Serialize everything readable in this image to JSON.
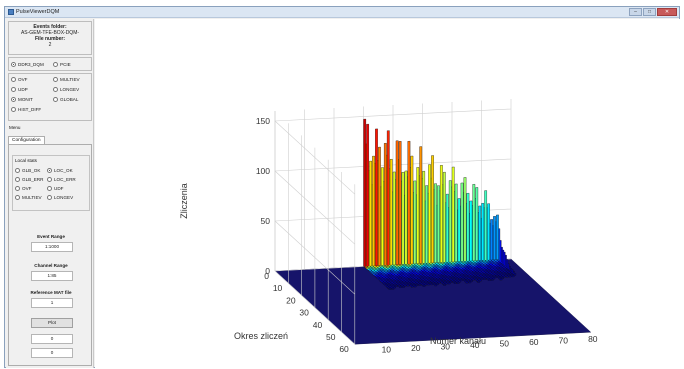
{
  "window": {
    "title": "PulseViewerDQM",
    "ctrl_minimize": "–",
    "ctrl_maximize": "□",
    "ctrl_close": "✕"
  },
  "sidebar": {
    "events_folder_label": "Events folder:",
    "events_folder_value": "AS-GEM-TFE-BOX-DQM-",
    "file_number_label": "File number:",
    "file_number_value": "2",
    "source_options": [
      {
        "label": "DDR3_DQM",
        "selected": true
      },
      {
        "label": "PCIE",
        "selected": false
      }
    ],
    "mode_options": [
      {
        "label": "OVF",
        "selected": false
      },
      {
        "label": "MULTIEV",
        "selected": false
      },
      {
        "label": "UDP",
        "selected": false
      },
      {
        "label": "LONGEV",
        "selected": false
      },
      {
        "label": "MONIT",
        "selected": true
      },
      {
        "label": "GLOBAL",
        "selected": false
      },
      {
        "label": "HIST_DIFF",
        "selected": false
      }
    ],
    "menu_label": "Menu",
    "tab_label": "Configuration",
    "local_stats_label": "Local stats",
    "local_stats": [
      {
        "label": "GLB_OK",
        "selected": false
      },
      {
        "label": "LOC_OK",
        "selected": true
      },
      {
        "label": "GLB_ERR",
        "selected": false
      },
      {
        "label": "LOC_ERR",
        "selected": false
      },
      {
        "label": "OVF",
        "selected": false
      },
      {
        "label": "UDF",
        "selected": false
      },
      {
        "label": "MULTIEV",
        "selected": false
      },
      {
        "label": "LONGEV",
        "selected": false
      }
    ],
    "event_range_label": "Event Range",
    "event_range_value": "1:1000",
    "channel_range_label": "Channel Range",
    "channel_range_value": "1:85",
    "reference_label": "Reference MAT file",
    "reference_value": "1",
    "plot_button": "Plot",
    "extra_field_1": "0",
    "extra_field_2": "0"
  },
  "chart_data": {
    "type": "bar3d",
    "zlabel": "Zliczenia",
    "xlabel": "Numer kanału",
    "ylabel": "Okres zliczeń",
    "x_ticks": [
      "10",
      "20",
      "30",
      "40",
      "50",
      "60",
      "70",
      "80"
    ],
    "y_ticks": [
      "0",
      "10",
      "20",
      "30",
      "40",
      "50",
      "60"
    ],
    "z_ticks": [
      "0",
      "50",
      "100",
      "150"
    ],
    "xlim": [
      0,
      80
    ],
    "ylim": [
      0,
      60
    ],
    "zlim": [
      0,
      150
    ],
    "colormap": "jet",
    "grid": true,
    "channels_active_range": [
      30,
      75
    ],
    "channel_peak_height": [
      155,
      150,
      145,
      140,
      138,
      135,
      140,
      142,
      135,
      132,
      130,
      133,
      128,
      125,
      122,
      125,
      120,
      118,
      115,
      117,
      112,
      110,
      108,
      110,
      105,
      103,
      100,
      98,
      96,
      100,
      95,
      92,
      90,
      88,
      85,
      88,
      82,
      80,
      78,
      76,
      72,
      70,
      65,
      58,
      50,
      45
    ],
    "counting_periods_active": [
      0,
      20
    ]
  }
}
